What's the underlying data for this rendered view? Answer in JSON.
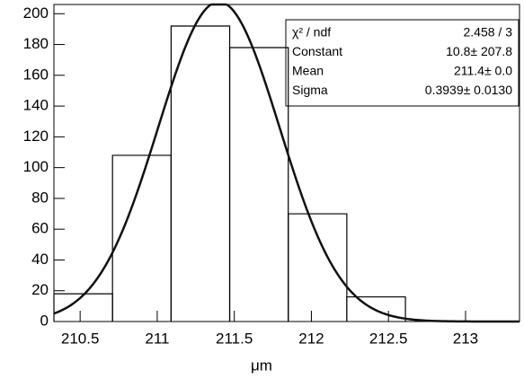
{
  "chart_data": {
    "type": "histogram",
    "bins": [
      210.33,
      210.71,
      211.09,
      211.47,
      211.85,
      212.23,
      212.61
    ],
    "values": [
      18,
      108,
      192,
      178,
      70,
      16
    ],
    "xlim": [
      210.33,
      213.35
    ],
    "ylim": [
      0,
      206
    ],
    "xticks": [
      210.5,
      211,
      211.5,
      212,
      212.5,
      213
    ],
    "yticks": [
      0,
      20,
      40,
      60,
      80,
      100,
      120,
      140,
      160,
      180,
      200
    ],
    "xlabel": "μm",
    "color": "#000000",
    "fit": {
      "type": "gaus",
      "color": "#111111"
    },
    "stats": [
      {
        "name": "χ² / ndf",
        "text": "2.458 / 3"
      },
      {
        "name": "Constant",
        "value": 207.8,
        "text": "10.8± 207.8"
      },
      {
        "name": "Mean",
        "value": 211.4,
        "text": "211.4± 0.0"
      },
      {
        "name": "Sigma",
        "value": 0.3939,
        "text": "0.3939± 0.0130"
      }
    ]
  }
}
